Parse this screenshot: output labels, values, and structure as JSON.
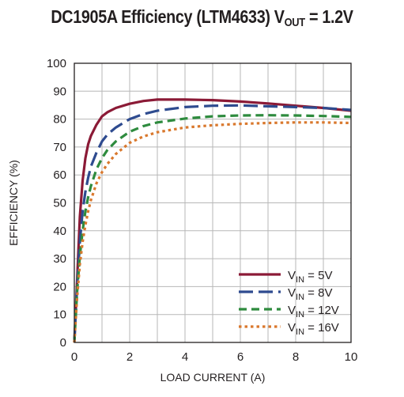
{
  "chart_data": {
    "type": "line",
    "title": {
      "prefix": "DC1905A Efficiency (LTM4633) V",
      "subscript": "OUT",
      "suffix": " = 1.2V"
    },
    "xlabel": "LOAD CURRENT (A)",
    "ylabel": "EFFICIENCY (%)",
    "xlim": [
      0,
      10
    ],
    "ylim": [
      0,
      100
    ],
    "xticks": [
      0,
      2,
      4,
      6,
      8,
      10
    ],
    "yticks": [
      0,
      10,
      20,
      30,
      40,
      50,
      60,
      70,
      80,
      90,
      100
    ],
    "grid": true,
    "legend_position": "bottom-right",
    "series": [
      {
        "name": "VIN = 5V",
        "legend": {
          "pre": "V",
          "sub": "IN",
          "post": " = 5V"
        },
        "color": "#8b1a36",
        "dash": "solid",
        "x": [
          0,
          0.1,
          0.2,
          0.3,
          0.4,
          0.5,
          0.6,
          0.8,
          1.0,
          1.2,
          1.5,
          2.0,
          2.5,
          3.0,
          4.0,
          5.0,
          6.0,
          7.0,
          8.0,
          9.0,
          10.0
        ],
        "y": [
          0,
          22,
          45,
          58,
          66,
          71,
          74,
          78,
          81,
          82.5,
          84,
          85.5,
          86.5,
          87,
          87,
          86.8,
          86.3,
          85.6,
          84.8,
          84,
          83
        ]
      },
      {
        "name": "VIN = 8V",
        "legend": {
          "pre": "V",
          "sub": "IN",
          "post": " = 8V"
        },
        "color": "#2e4b8f",
        "dash": "long",
        "x": [
          0,
          0.1,
          0.2,
          0.3,
          0.4,
          0.5,
          0.6,
          0.8,
          1.0,
          1.2,
          1.5,
          2.0,
          2.5,
          3.0,
          4.0,
          5.0,
          6.0,
          7.0,
          8.0,
          9.0,
          10.0
        ],
        "y": [
          0,
          20,
          36,
          47,
          54,
          59,
          63,
          68,
          72,
          74.5,
          77,
          80,
          81.8,
          83,
          84.3,
          84.8,
          84.9,
          84.6,
          84.3,
          84,
          83.3
        ]
      },
      {
        "name": "VIN = 12V",
        "legend": {
          "pre": "V",
          "sub": "IN",
          "post": " = 12V"
        },
        "color": "#2e8b3e",
        "dash": "medium",
        "x": [
          0,
          0.1,
          0.2,
          0.3,
          0.4,
          0.5,
          0.6,
          0.8,
          1.0,
          1.2,
          1.5,
          2.0,
          2.5,
          3.0,
          4.0,
          5.0,
          6.0,
          7.0,
          8.0,
          9.0,
          10.0
        ],
        "y": [
          0,
          18,
          31,
          40,
          47,
          52,
          56,
          62,
          66,
          69,
          72,
          75.5,
          77.5,
          78.8,
          80.2,
          81,
          81.3,
          81.4,
          81.3,
          81.1,
          80.8
        ]
      },
      {
        "name": "VIN = 16V",
        "legend": {
          "pre": "V",
          "sub": "IN",
          "post": " = 16V"
        },
        "color": "#d9782d",
        "dash": "dotted",
        "x": [
          0,
          0.1,
          0.2,
          0.3,
          0.4,
          0.5,
          0.6,
          0.8,
          1.0,
          1.2,
          1.5,
          2.0,
          2.5,
          3.0,
          4.0,
          5.0,
          6.0,
          7.0,
          8.0,
          9.0,
          10.0
        ],
        "y": [
          0,
          16,
          28,
          36,
          42,
          47,
          51,
          57,
          61,
          64,
          67.5,
          71.5,
          73.8,
          75.3,
          77,
          77.8,
          78.3,
          78.6,
          78.8,
          78.8,
          78.6
        ]
      }
    ]
  }
}
